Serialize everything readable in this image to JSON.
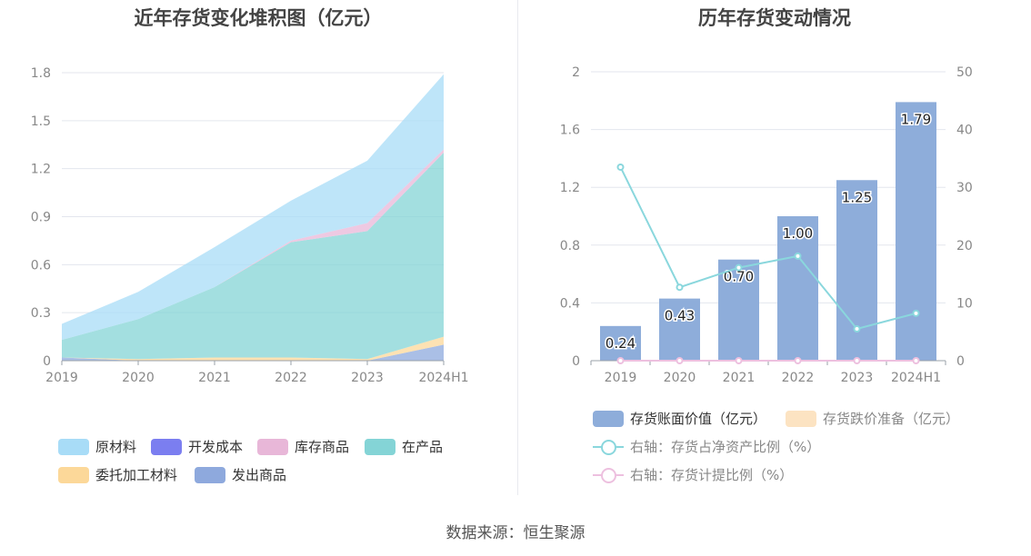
{
  "left_chart": {
    "title": "近年存货变化堆积图（亿元）",
    "legend": [
      "原材料",
      "开发成本",
      "库存商品",
      "在产品",
      "委托加工材料",
      "发出商品"
    ]
  },
  "right_chart": {
    "title": "历年存货变动情况",
    "legend": [
      "存货账面价值（亿元）",
      "存货跌价准备（亿元）",
      "右轴：存货占净资产比例（%）",
      "右轴：存货计提比例（%）"
    ]
  },
  "source": "数据来源：恒生聚源",
  "colors": {
    "raw_materials": "#a8dcf7",
    "development_cost": "#7b7ef0",
    "inventory_goods": "#e8b7d8",
    "work_in_progress": "#84d4d6",
    "consigned_materials": "#fcd899",
    "goods_shipped": "#8ea9dd",
    "bar": "#8eadda",
    "bar_reserve": "#fce3c2",
    "line_ratio": "#8ad7dd",
    "line_provision": "#edc0df"
  },
  "chart_data": [
    {
      "type": "area",
      "stacked": true,
      "title": "近年存货变化堆积图（亿元）",
      "categories": [
        "2019",
        "2020",
        "2021",
        "2022",
        "2023",
        "2024H1"
      ],
      "ylim": [
        0,
        1.8
      ],
      "yticks": [
        "0",
        "0.3",
        "0.6",
        "0.9",
        "1.2",
        "1.5",
        "1.8"
      ],
      "grid": true,
      "legend_position": "bottom",
      "series": [
        {
          "name": "发出商品",
          "values": [
            0.02,
            0.0,
            0.0,
            0.0,
            0.0,
            0.1
          ]
        },
        {
          "name": "委托加工材料",
          "values": [
            0.0,
            0.01,
            0.02,
            0.02,
            0.01,
            0.05
          ]
        },
        {
          "name": "在产品",
          "values": [
            0.11,
            0.25,
            0.44,
            0.72,
            0.8,
            1.15
          ]
        },
        {
          "name": "库存商品",
          "values": [
            0.0,
            0.0,
            0.0,
            0.01,
            0.05,
            0.02
          ]
        },
        {
          "name": "开发成本",
          "values": [
            0.0,
            0.0,
            0.0,
            0.0,
            0.0,
            0.0
          ]
        },
        {
          "name": "原材料",
          "values": [
            0.1,
            0.17,
            0.25,
            0.25,
            0.39,
            0.47
          ]
        }
      ]
    },
    {
      "type": "bar",
      "title": "历年存货变动情况",
      "categories": [
        "2019",
        "2020",
        "2021",
        "2022",
        "2023",
        "2024H1"
      ],
      "ylim": [
        0,
        2
      ],
      "yticks": [
        "0",
        "0.4",
        "0.8",
        "1.2",
        "1.6",
        "2"
      ],
      "y2lim": [
        0,
        50
      ],
      "y2ticks": [
        "0",
        "10",
        "20",
        "30",
        "40",
        "50"
      ],
      "grid": true,
      "legend_position": "bottom",
      "series": [
        {
          "name": "存货账面价值（亿元）",
          "type": "bar",
          "values": [
            0.24,
            0.43,
            0.7,
            1.0,
            1.25,
            1.79
          ],
          "labels": [
            "0.24",
            "0.43",
            "0.70",
            "1.00",
            "1.25",
            "1.79"
          ]
        },
        {
          "name": "存货跌价准备（亿元）",
          "type": "bar",
          "values": [
            0,
            0,
            0,
            0,
            0,
            0
          ]
        },
        {
          "name": "右轴：存货占净资产比例（%）",
          "type": "line",
          "axis": "right",
          "values": [
            33.5,
            12.7,
            16.1,
            18.1,
            5.5,
            8.2
          ]
        },
        {
          "name": "右轴：存货计提比例（%）",
          "type": "line",
          "axis": "right",
          "values": [
            0,
            0,
            0,
            0,
            0,
            0
          ]
        }
      ]
    }
  ]
}
